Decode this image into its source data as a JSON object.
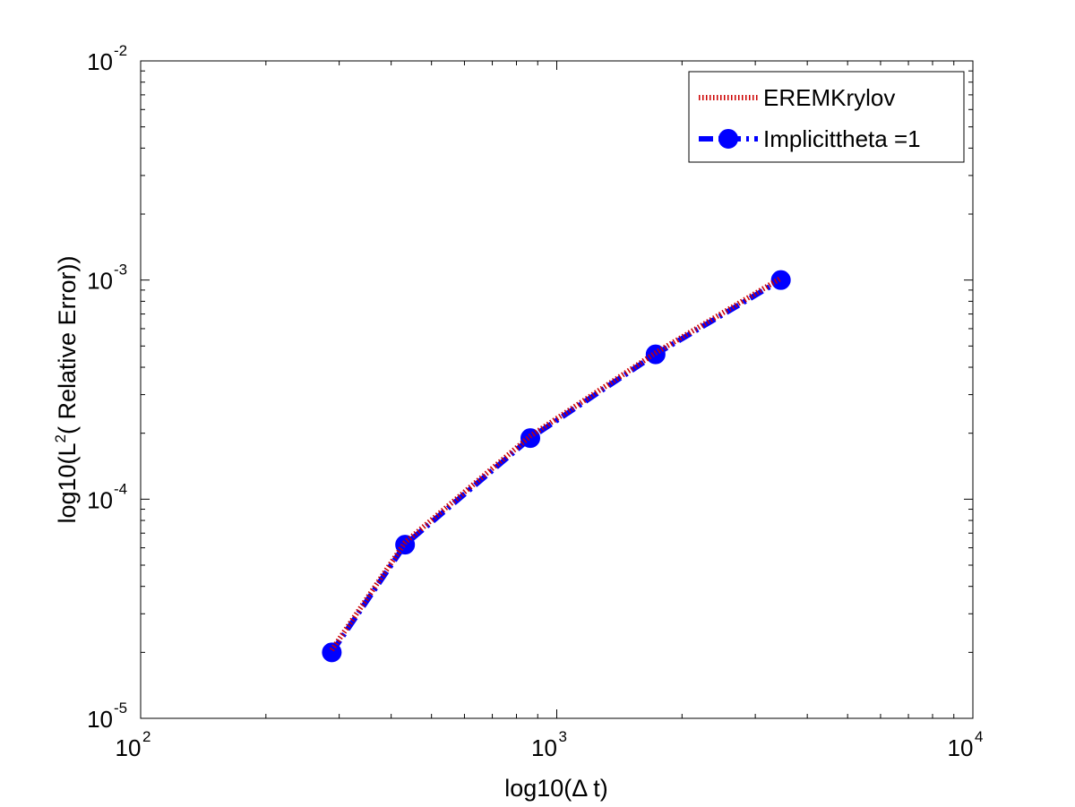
{
  "chart_data": {
    "type": "line",
    "title": "",
    "xlabel": "log10(Δ t)",
    "ylabel_main": "log10(L",
    "ylabel_sup": "2",
    "ylabel_rest": "( Relative Error))",
    "xscale": "log",
    "yscale": "log",
    "xlim": [
      100,
      10000
    ],
    "ylim": [
      1e-05,
      0.01
    ],
    "x_ticks": [
      {
        "value": 100,
        "base": "10",
        "exp": "2"
      },
      {
        "value": 1000,
        "base": "10",
        "exp": "3"
      },
      {
        "value": 10000,
        "base": "10",
        "exp": "4"
      }
    ],
    "y_ticks": [
      {
        "value": 1e-05,
        "base": "10",
        "exp": "-5"
      },
      {
        "value": 0.0001,
        "base": "10",
        "exp": "-4"
      },
      {
        "value": 0.001,
        "base": "10",
        "exp": "-3"
      },
      {
        "value": 0.01,
        "base": "10",
        "exp": "-2"
      }
    ],
    "grid": false,
    "legend_position": "top-right",
    "series": [
      {
        "name": "EREMKrylov",
        "color": "#cc0000",
        "line_style": "dotted",
        "marker": "none",
        "x": [
          288,
          432,
          864,
          1728,
          3456
        ],
        "y": [
          2.05e-05,
          6.35e-05,
          0.000194,
          0.000465,
          0.00102
        ]
      },
      {
        "name": "Implicittheta =1",
        "color": "#0000ff",
        "line_style": "dash-dot",
        "marker": "circle",
        "x": [
          288,
          432,
          864,
          1728,
          3456
        ],
        "y": [
          2e-05,
          6.2e-05,
          0.00019,
          0.000458,
          0.001
        ]
      }
    ]
  }
}
